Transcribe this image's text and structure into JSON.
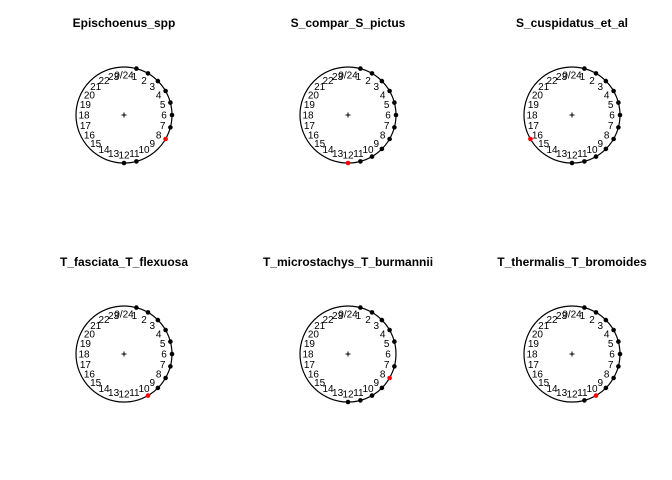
{
  "chart_data": [
    {
      "type": "scatter",
      "subtype": "circular",
      "title": "Epischoenus_spp",
      "hour_labels": [
        "0/24",
        "1",
        "2",
        "3",
        "4",
        "5",
        "6",
        "7",
        "8",
        "9",
        "10",
        "11",
        "12",
        "13",
        "14",
        "15",
        "16",
        "17",
        "18",
        "19",
        "20",
        "21",
        "22",
        "23"
      ],
      "points": [
        1,
        2,
        3,
        4,
        5,
        6,
        7,
        8,
        11,
        12
      ],
      "highlight": [
        8
      ],
      "colors": {
        "point": "#000000",
        "highlight": "#ff0000"
      }
    },
    {
      "type": "scatter",
      "subtype": "circular",
      "title": "S_compar_S_pictus",
      "hour_labels": [
        "0/24",
        "1",
        "2",
        "3",
        "4",
        "5",
        "6",
        "7",
        "8",
        "9",
        "10",
        "11",
        "12",
        "13",
        "14",
        "15",
        "16",
        "17",
        "18",
        "19",
        "20",
        "21",
        "22",
        "23"
      ],
      "points": [
        1,
        2,
        3,
        4,
        5,
        6,
        7,
        8,
        9,
        10,
        11,
        12
      ],
      "highlight": [
        12
      ],
      "colors": {
        "point": "#000000",
        "highlight": "#ff0000"
      }
    },
    {
      "type": "scatter",
      "subtype": "circular",
      "title": "S_cuspidatus_et_al",
      "hour_labels": [
        "0/24",
        "1",
        "2",
        "3",
        "4",
        "5",
        "6",
        "7",
        "8",
        "9",
        "10",
        "11",
        "12",
        "13",
        "14",
        "15",
        "16",
        "17",
        "18",
        "19",
        "20",
        "21",
        "22",
        "23"
      ],
      "points": [
        1,
        2,
        3,
        4,
        5,
        6,
        7,
        8,
        9,
        10,
        11,
        12,
        16
      ],
      "highlight": [
        16
      ],
      "colors": {
        "point": "#000000",
        "highlight": "#ff0000"
      }
    },
    {
      "type": "scatter",
      "subtype": "circular",
      "title": "T_fasciata_T_flexuosa",
      "hour_labels": [
        "0/24",
        "1",
        "2",
        "3",
        "4",
        "5",
        "6",
        "7",
        "8",
        "9",
        "10",
        "11",
        "12",
        "13",
        "14",
        "15",
        "16",
        "17",
        "18",
        "19",
        "20",
        "21",
        "22",
        "23"
      ],
      "points": [
        1,
        2,
        3,
        4,
        5,
        6,
        7,
        8,
        9,
        10
      ],
      "highlight": [
        10
      ],
      "colors": {
        "point": "#000000",
        "highlight": "#ff0000"
      }
    },
    {
      "type": "scatter",
      "subtype": "circular",
      "title": "T_microstachys_T_burmannii",
      "hour_labels": [
        "0/24",
        "1",
        "2",
        "3",
        "4",
        "5",
        "6",
        "7",
        "8",
        "9",
        "10",
        "11",
        "12",
        "13",
        "14",
        "15",
        "16",
        "17",
        "18",
        "19",
        "20",
        "21",
        "22",
        "23"
      ],
      "points": [
        1,
        2,
        3,
        4,
        5,
        7,
        8,
        9,
        10,
        11,
        12
      ],
      "highlight": [
        8
      ],
      "colors": {
        "point": "#000000",
        "highlight": "#ff0000"
      }
    },
    {
      "type": "scatter",
      "subtype": "circular",
      "title": "T_thermalis_T_bromoides",
      "hour_labels": [
        "0/24",
        "1",
        "2",
        "3",
        "4",
        "5",
        "6",
        "7",
        "8",
        "9",
        "10",
        "11",
        "12",
        "13",
        "14",
        "15",
        "16",
        "17",
        "18",
        "19",
        "20",
        "21",
        "22",
        "23"
      ],
      "points": [
        1,
        2,
        3,
        4,
        5,
        6,
        7,
        8,
        9,
        10,
        11
      ],
      "highlight": [
        10
      ],
      "colors": {
        "point": "#000000",
        "highlight": "#ff0000"
      }
    }
  ]
}
